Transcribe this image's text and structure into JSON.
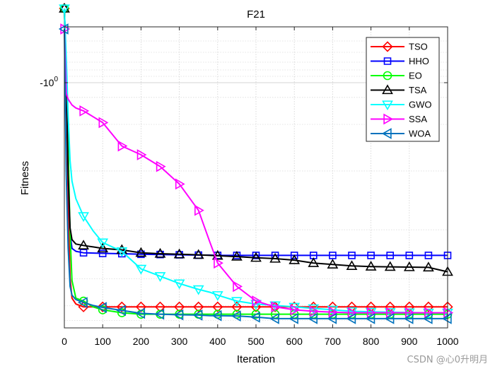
{
  "chart_data": {
    "type": "line",
    "title": "F21",
    "xlabel": "Iteration",
    "ylabel": "Fitness",
    "xlim": [
      0,
      1000
    ],
    "x_ticks": [
      0,
      100,
      200,
      300,
      400,
      500,
      600,
      700,
      800,
      900,
      1000
    ],
    "y_tick_label": "-10",
    "y_tick_exponent": "0",
    "y_scale": "log (negative values)",
    "ylim_relative": [
      0,
      1
    ],
    "grid": true,
    "legend_position": "top-right",
    "marker_every": 50,
    "x": [
      0,
      5,
      10,
      15,
      20,
      30,
      50,
      75,
      100,
      150,
      200,
      250,
      300,
      350,
      380,
      400,
      450,
      500,
      550,
      600,
      650,
      700,
      750,
      800,
      850,
      900,
      950,
      1000
    ],
    "series": [
      {
        "name": "TSO",
        "color": "#ff0000",
        "marker": "diamond",
        "values": [
          1.07,
          0.85,
          0.4,
          0.15,
          0.08,
          0.06,
          0.05,
          0.05,
          0.05,
          0.05,
          0.05,
          0.05,
          0.05,
          0.05,
          0.05,
          0.05,
          0.05,
          0.05,
          0.05,
          0.05,
          0.05,
          0.05,
          0.05,
          0.05,
          0.05,
          0.05,
          0.05,
          0.05
        ]
      },
      {
        "name": "HHO",
        "color": "#0000ff",
        "marker": "square",
        "values": [
          1.07,
          0.86,
          0.5,
          0.3,
          0.25,
          0.24,
          0.235,
          0.234,
          0.233,
          0.232,
          0.23,
          0.229,
          0.228,
          0.227,
          0.227,
          0.226,
          0.226,
          0.226,
          0.226,
          0.226,
          0.226,
          0.226,
          0.226,
          0.226,
          0.226,
          0.226,
          0.226,
          0.226
        ]
      },
      {
        "name": "EO",
        "color": "#00ff00",
        "marker": "circle",
        "values": [
          1.07,
          0.85,
          0.6,
          0.3,
          0.14,
          0.08,
          0.07,
          0.05,
          0.04,
          0.03,
          0.025,
          0.025,
          0.025,
          0.025,
          0.025,
          0.025,
          0.025,
          0.025,
          0.025,
          0.025,
          0.025,
          0.025,
          0.025,
          0.025,
          0.025,
          0.025,
          0.025,
          0.025
        ]
      },
      {
        "name": "TSA",
        "color": "#000000",
        "marker": "triangle-up",
        "values": [
          1.07,
          0.85,
          0.5,
          0.32,
          0.28,
          0.265,
          0.26,
          0.255,
          0.25,
          0.245,
          0.235,
          0.232,
          0.23,
          0.228,
          0.226,
          0.225,
          0.222,
          0.218,
          0.215,
          0.21,
          0.2,
          0.195,
          0.19,
          0.188,
          0.187,
          0.186,
          0.185,
          0.17
        ]
      },
      {
        "name": "GWO",
        "color": "#00ffff",
        "marker": "triangle-down",
        "values": [
          1.07,
          0.9,
          0.7,
          0.55,
          0.48,
          0.42,
          0.36,
          0.31,
          0.27,
          0.24,
          0.18,
          0.155,
          0.13,
          0.11,
          0.1,
          0.09,
          0.07,
          0.06,
          0.055,
          0.05,
          0.045,
          0.04,
          0.035,
          0.033,
          0.032,
          0.031,
          0.03,
          0.03
        ]
      },
      {
        "name": "SSA",
        "color": "#ff00ff",
        "marker": "triangle-right",
        "values": [
          1.0,
          0.78,
          0.76,
          0.75,
          0.74,
          0.73,
          0.72,
          0.7,
          0.68,
          0.6,
          0.57,
          0.53,
          0.47,
          0.38,
          0.27,
          0.2,
          0.12,
          0.07,
          0.05,
          0.04,
          0.035,
          0.032,
          0.03,
          0.03,
          0.03,
          0.03,
          0.03,
          0.03
        ]
      },
      {
        "name": "WOA",
        "color": "#0072bd",
        "marker": "triangle-left",
        "values": [
          1.0,
          0.5,
          0.25,
          0.12,
          0.09,
          0.075,
          0.065,
          0.055,
          0.048,
          0.038,
          0.028,
          0.025,
          0.023,
          0.022,
          0.02,
          0.02,
          0.019,
          0.015,
          0.01,
          0.01,
          0.01,
          0.01,
          0.01,
          0.01,
          0.01,
          0.01,
          0.01,
          0.01
        ]
      }
    ]
  },
  "watermark": "CSDN @心0升明月"
}
